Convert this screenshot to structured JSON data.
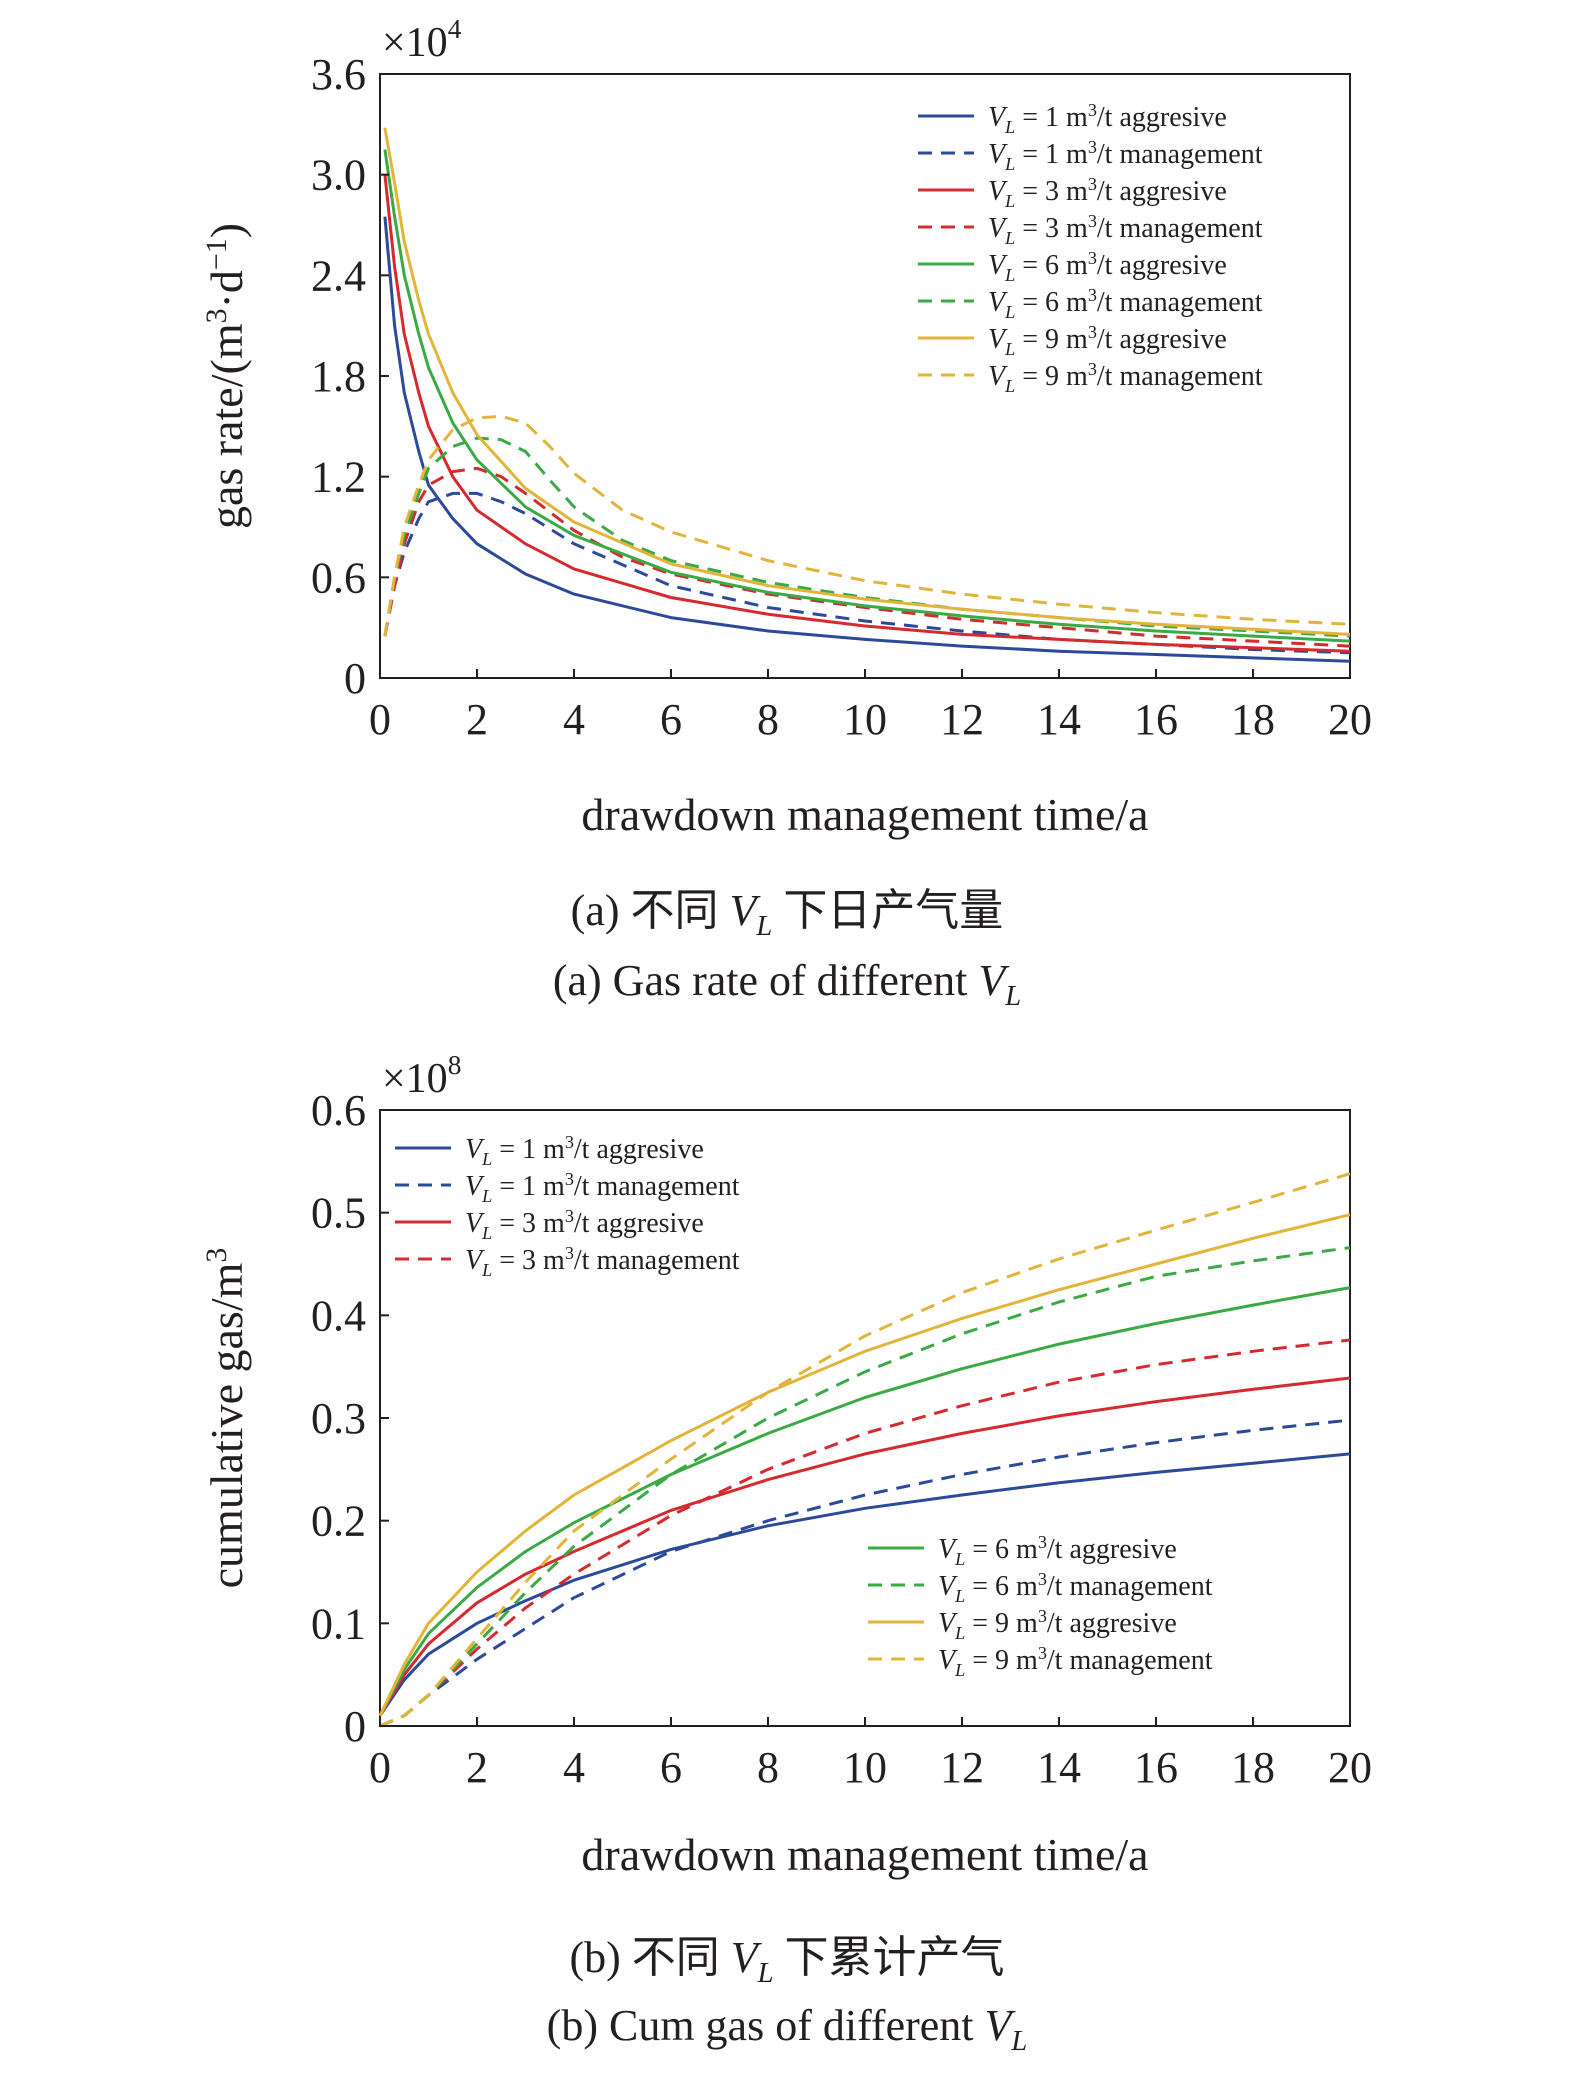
{
  "charts": [
    {
      "multiplier_base": "×10",
      "multiplier_exp": "4",
      "xlabel": "drawdown management time/a",
      "ylabel_pre": "gas rate/(m",
      "ylabel_mid": "·d",
      "ylabel_post": ")",
      "ylabel_sup1": "3",
      "ylabel_sup2": "−1",
      "caption_cn_pre": "(a) 不同 ",
      "caption_cn_post": " 下日产气量",
      "caption_en_pre": "(a) Gas rate of different ",
      "var_main": "V",
      "var_sub": "L"
    },
    {
      "multiplier_base": "×10",
      "multiplier_exp": "8",
      "xlabel": "drawdown management time/a",
      "ylabel_pre": "cumulative gas/m",
      "ylabel_sup1": "3",
      "caption_cn_pre": "(b) 不同 ",
      "caption_cn_post": " 下累计产气",
      "caption_en_pre": "(b) Cum gas of different ",
      "var_main": "V",
      "var_sub": "L"
    }
  ],
  "legend_var_main": "V",
  "legend_var_sub": "L",
  "chart_data": [
    {
      "type": "line",
      "xlim": [
        0,
        20
      ],
      "ylim": [
        0,
        3.6
      ],
      "y_multiplier": 10000,
      "x_ticks": [
        "0",
        "2",
        "4",
        "6",
        "8",
        "10",
        "12",
        "14",
        "16",
        "18",
        "20"
      ],
      "y_ticks": [
        "0",
        "0.6",
        "1.2",
        "1.8",
        "2.4",
        "3.0",
        "3.6"
      ],
      "legend_position": "top-right",
      "series": [
        {
          "name": " = 1 m",
          "name2": "/t aggresive",
          "color": "#2c4a9a",
          "dash": false,
          "x": [
            0.1,
            0.3,
            0.5,
            0.8,
            1,
            1.5,
            2,
            3,
            4,
            6,
            8,
            10,
            12,
            14,
            16,
            18,
            20
          ],
          "y": [
            2.75,
            2.1,
            1.7,
            1.35,
            1.15,
            0.95,
            0.8,
            0.62,
            0.5,
            0.36,
            0.28,
            0.23,
            0.19,
            0.16,
            0.14,
            0.12,
            0.1
          ]
        },
        {
          "name": " = 1 m",
          "name2": "/t management",
          "color": "#2c4a9a",
          "dash": true,
          "x": [
            0.1,
            0.3,
            0.5,
            0.8,
            1,
            1.5,
            2,
            2.5,
            3,
            4,
            6,
            8,
            10,
            12,
            14,
            16,
            18,
            20
          ],
          "y": [
            0.25,
            0.55,
            0.75,
            0.95,
            1.05,
            1.1,
            1.1,
            1.05,
            0.98,
            0.8,
            0.55,
            0.42,
            0.34,
            0.28,
            0.23,
            0.2,
            0.17,
            0.15
          ]
        },
        {
          "name": " = 3 m",
          "name2": "/t aggresive",
          "color": "#d62a2e",
          "dash": false,
          "x": [
            0.1,
            0.3,
            0.5,
            0.8,
            1,
            1.5,
            2,
            3,
            4,
            6,
            8,
            10,
            12,
            14,
            16,
            18,
            20
          ],
          "y": [
            3.0,
            2.45,
            2.05,
            1.7,
            1.5,
            1.2,
            1.0,
            0.8,
            0.65,
            0.48,
            0.38,
            0.31,
            0.26,
            0.23,
            0.2,
            0.18,
            0.16
          ]
        },
        {
          "name": " = 3 m",
          "name2": "/t management",
          "color": "#d62a2e",
          "dash": true,
          "x": [
            0.1,
            0.3,
            0.5,
            0.8,
            1,
            1.5,
            2,
            2.5,
            3,
            4,
            5,
            6,
            8,
            10,
            12,
            14,
            16,
            18,
            20
          ],
          "y": [
            0.25,
            0.55,
            0.8,
            1.05,
            1.15,
            1.23,
            1.25,
            1.2,
            1.1,
            0.88,
            0.72,
            0.62,
            0.5,
            0.42,
            0.35,
            0.3,
            0.25,
            0.22,
            0.19
          ]
        },
        {
          "name": " = 6 m",
          "name2": "/t aggresive",
          "color": "#3aaa44",
          "dash": false,
          "x": [
            0.1,
            0.3,
            0.5,
            0.8,
            1,
            1.5,
            2,
            3,
            4,
            6,
            8,
            10,
            12,
            14,
            16,
            18,
            20
          ],
          "y": [
            3.15,
            2.75,
            2.4,
            2.05,
            1.85,
            1.52,
            1.3,
            1.02,
            0.85,
            0.63,
            0.51,
            0.43,
            0.37,
            0.32,
            0.28,
            0.25,
            0.22
          ]
        },
        {
          "name": " = 6 m",
          "name2": "/t management",
          "color": "#3aaa44",
          "dash": true,
          "x": [
            0.1,
            0.3,
            0.5,
            0.8,
            1,
            1.5,
            2,
            2.5,
            3,
            3.5,
            4,
            5,
            6,
            8,
            10,
            12,
            14,
            16,
            18,
            20
          ],
          "y": [
            0.25,
            0.6,
            0.85,
            1.1,
            1.25,
            1.38,
            1.43,
            1.42,
            1.35,
            1.18,
            1.02,
            0.82,
            0.7,
            0.57,
            0.48,
            0.41,
            0.36,
            0.31,
            0.28,
            0.25
          ]
        },
        {
          "name": " = 9 m",
          "name2": "/t aggresive",
          "color": "#e3b43a",
          "dash": false,
          "x": [
            0.1,
            0.3,
            0.5,
            0.8,
            1,
            1.5,
            2,
            3,
            4,
            6,
            8,
            10,
            12,
            14,
            16,
            18,
            20
          ],
          "y": [
            3.28,
            2.95,
            2.6,
            2.25,
            2.05,
            1.7,
            1.45,
            1.13,
            0.93,
            0.68,
            0.55,
            0.47,
            0.41,
            0.36,
            0.32,
            0.29,
            0.26
          ]
        },
        {
          "name": " = 9 m",
          "name2": "/t management",
          "color": "#e3b43a",
          "dash": true,
          "x": [
            0.1,
            0.3,
            0.5,
            0.8,
            1,
            1.5,
            2,
            2.5,
            3,
            3.5,
            4,
            5,
            6,
            8,
            10,
            12,
            14,
            16,
            18,
            20
          ],
          "y": [
            0.25,
            0.6,
            0.9,
            1.15,
            1.3,
            1.48,
            1.55,
            1.56,
            1.52,
            1.38,
            1.22,
            1.0,
            0.87,
            0.7,
            0.58,
            0.5,
            0.44,
            0.39,
            0.35,
            0.32
          ]
        }
      ]
    },
    {
      "type": "line",
      "xlim": [
        0,
        20
      ],
      "ylim": [
        0,
        0.6
      ],
      "y_multiplier": 100000000,
      "x_ticks": [
        "0",
        "2",
        "4",
        "6",
        "8",
        "10",
        "12",
        "14",
        "16",
        "18",
        "20"
      ],
      "y_ticks": [
        "0",
        "0.1",
        "0.2",
        "0.3",
        "0.4",
        "0.5",
        "0.6"
      ],
      "legend_position": "top-left and bottom-right",
      "series": [
        {
          "name": " = 1 m",
          "name2": "/t aggresive",
          "color": "#2c4a9a",
          "dash": false,
          "x": [
            0,
            0.5,
            1,
            2,
            3,
            4,
            6,
            8,
            10,
            12,
            14,
            16,
            18,
            20
          ],
          "y": [
            0.01,
            0.045,
            0.07,
            0.1,
            0.122,
            0.142,
            0.172,
            0.195,
            0.212,
            0.225,
            0.237,
            0.247,
            0.256,
            0.265
          ]
        },
        {
          "name": " = 1 m",
          "name2": "/t management",
          "color": "#2c4a9a",
          "dash": true,
          "x": [
            0,
            0.5,
            1,
            2,
            3,
            4,
            6,
            8,
            10,
            12,
            14,
            16,
            18,
            20
          ],
          "y": [
            0.0,
            0.01,
            0.03,
            0.065,
            0.095,
            0.125,
            0.17,
            0.2,
            0.225,
            0.245,
            0.262,
            0.276,
            0.288,
            0.298
          ]
        },
        {
          "name": " = 3 m",
          "name2": "/t aggresive",
          "color": "#d62a2e",
          "dash": false,
          "x": [
            0,
            0.5,
            1,
            2,
            3,
            4,
            6,
            8,
            10,
            12,
            14,
            16,
            18,
            20
          ],
          "y": [
            0.01,
            0.05,
            0.08,
            0.12,
            0.148,
            0.17,
            0.21,
            0.24,
            0.265,
            0.285,
            0.302,
            0.316,
            0.328,
            0.339
          ]
        },
        {
          "name": " = 3 m",
          "name2": "/t management",
          "color": "#d62a2e",
          "dash": true,
          "x": [
            0,
            0.5,
            1,
            2,
            3,
            4,
            6,
            8,
            10,
            12,
            14,
            16,
            18,
            20
          ],
          "y": [
            0.0,
            0.01,
            0.03,
            0.075,
            0.115,
            0.148,
            0.205,
            0.25,
            0.285,
            0.312,
            0.335,
            0.352,
            0.365,
            0.376
          ]
        },
        {
          "name": " = 6 m",
          "name2": "/t aggresive",
          "color": "#3aaa44",
          "dash": false,
          "x": [
            0,
            0.5,
            1,
            2,
            3,
            4,
            6,
            8,
            10,
            12,
            14,
            16,
            18,
            20
          ],
          "y": [
            0.01,
            0.055,
            0.09,
            0.135,
            0.17,
            0.198,
            0.245,
            0.285,
            0.32,
            0.348,
            0.372,
            0.392,
            0.41,
            0.427
          ]
        },
        {
          "name": " = 6 m",
          "name2": "/t management",
          "color": "#3aaa44",
          "dash": true,
          "x": [
            0,
            0.5,
            1,
            2,
            3,
            4,
            6,
            8,
            10,
            12,
            14,
            16,
            18,
            20
          ],
          "y": [
            0.0,
            0.01,
            0.03,
            0.08,
            0.13,
            0.175,
            0.245,
            0.3,
            0.345,
            0.382,
            0.413,
            0.438,
            0.453,
            0.466
          ]
        },
        {
          "name": " = 9 m",
          "name2": "/t aggresive",
          "color": "#e3b43a",
          "dash": false,
          "x": [
            0,
            0.5,
            1,
            2,
            3,
            4,
            6,
            8,
            10,
            12,
            14,
            16,
            18,
            20
          ],
          "y": [
            0.01,
            0.06,
            0.1,
            0.15,
            0.19,
            0.225,
            0.278,
            0.325,
            0.365,
            0.397,
            0.425,
            0.45,
            0.475,
            0.498
          ]
        },
        {
          "name": " = 9 m",
          "name2": "/t management",
          "color": "#e3b43a",
          "dash": true,
          "x": [
            0,
            0.5,
            1,
            2,
            3,
            4,
            6,
            8,
            10,
            12,
            14,
            16,
            18,
            20
          ],
          "y": [
            0.0,
            0.01,
            0.03,
            0.085,
            0.14,
            0.19,
            0.26,
            0.325,
            0.38,
            0.422,
            0.455,
            0.483,
            0.51,
            0.538
          ]
        }
      ]
    }
  ]
}
